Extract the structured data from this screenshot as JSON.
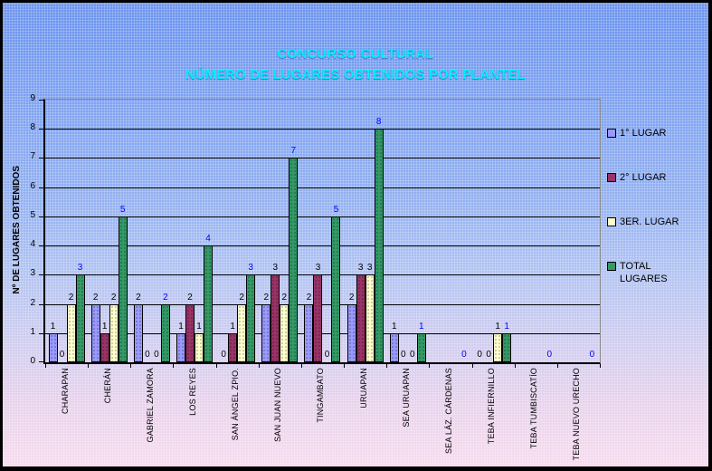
{
  "title": {
    "line1": "CONCURSO CULTURAL",
    "line2": "NÚMERO DE LUGARES OBTENIDOS POR PLANTEL",
    "color": "#00EEFF"
  },
  "y_axis": {
    "title": "Nº DE LUGARES OBTENIDOS",
    "min": 0,
    "max": 9,
    "tick_step": 1
  },
  "legend": {
    "position": "right",
    "items": [
      {
        "label": "1° LUGAR",
        "color": "#9999FF"
      },
      {
        "label": "2° LUGAR",
        "color": "#993366"
      },
      {
        "label": "3ER. LUGAR",
        "color": "#FFFFCC"
      },
      {
        "label": "TOTAL\nLUGARES",
        "color": "#339966"
      }
    ]
  },
  "chart_data": {
    "type": "bar",
    "title": "CONCURSO CULTURAL — NÚMERO DE LUGARES OBTENIDOS POR PLANTEL",
    "xlabel": "",
    "ylabel": "Nº DE LUGARES OBTENIDOS",
    "ylim": [
      0,
      9
    ],
    "grid": true,
    "legend_position": "right",
    "categories": [
      "CHARAPAN",
      "CHERÁN",
      "GABRIEL ZAMORA",
      "LOS REYES",
      "SAN ÁNGEL ZPIO.",
      "SAN JUAN NUEVO",
      "TINGAMBATO",
      "URUAPAN",
      "SEA URUAPAN",
      "SEA LÁZ. CÁRDENAS",
      "TEBA INFIERNILLO",
      "TEBA TUMBISCATÍO",
      "TEBA NUEVO URECHO"
    ],
    "series": [
      {
        "name": "1° LUGAR",
        "color": "#9999FF",
        "label_color": "#000000",
        "values": [
          1,
          2,
          2,
          1,
          0,
          2,
          2,
          2,
          1,
          0,
          0,
          0,
          0
        ],
        "data_labels": [
          "1",
          "2",
          "2",
          "1",
          "0",
          "2",
          "2",
          "2",
          "1",
          "",
          "0",
          "",
          ""
        ]
      },
      {
        "name": "2° LUGAR",
        "color": "#993366",
        "label_color": "#000000",
        "values": [
          0,
          1,
          0,
          2,
          1,
          3,
          3,
          3,
          0,
          0,
          0,
          0,
          0
        ],
        "data_labels": [
          "0",
          "1",
          "0",
          "2",
          "1",
          "3",
          "3",
          "3",
          "0",
          "",
          "0",
          "",
          ""
        ]
      },
      {
        "name": "3ER. LUGAR",
        "color": "#FFFFCC",
        "label_color": "#000000",
        "values": [
          2,
          2,
          0,
          1,
          2,
          2,
          0,
          3,
          0,
          0,
          1,
          0,
          0
        ],
        "data_labels": [
          "2",
          "2",
          "0",
          "1",
          "2",
          "2",
          "0",
          "3",
          "0",
          "",
          "1",
          "",
          ""
        ]
      },
      {
        "name": "TOTAL LUGARES",
        "color": "#339966",
        "label_color": "#0000FF",
        "values": [
          3,
          5,
          2,
          4,
          3,
          7,
          5,
          8,
          1,
          0,
          1,
          0,
          0
        ],
        "data_labels": [
          "3",
          "5",
          "2",
          "4",
          "3",
          "7",
          "5",
          "8",
          "1",
          "0",
          "1",
          "0",
          "0"
        ]
      }
    ]
  }
}
